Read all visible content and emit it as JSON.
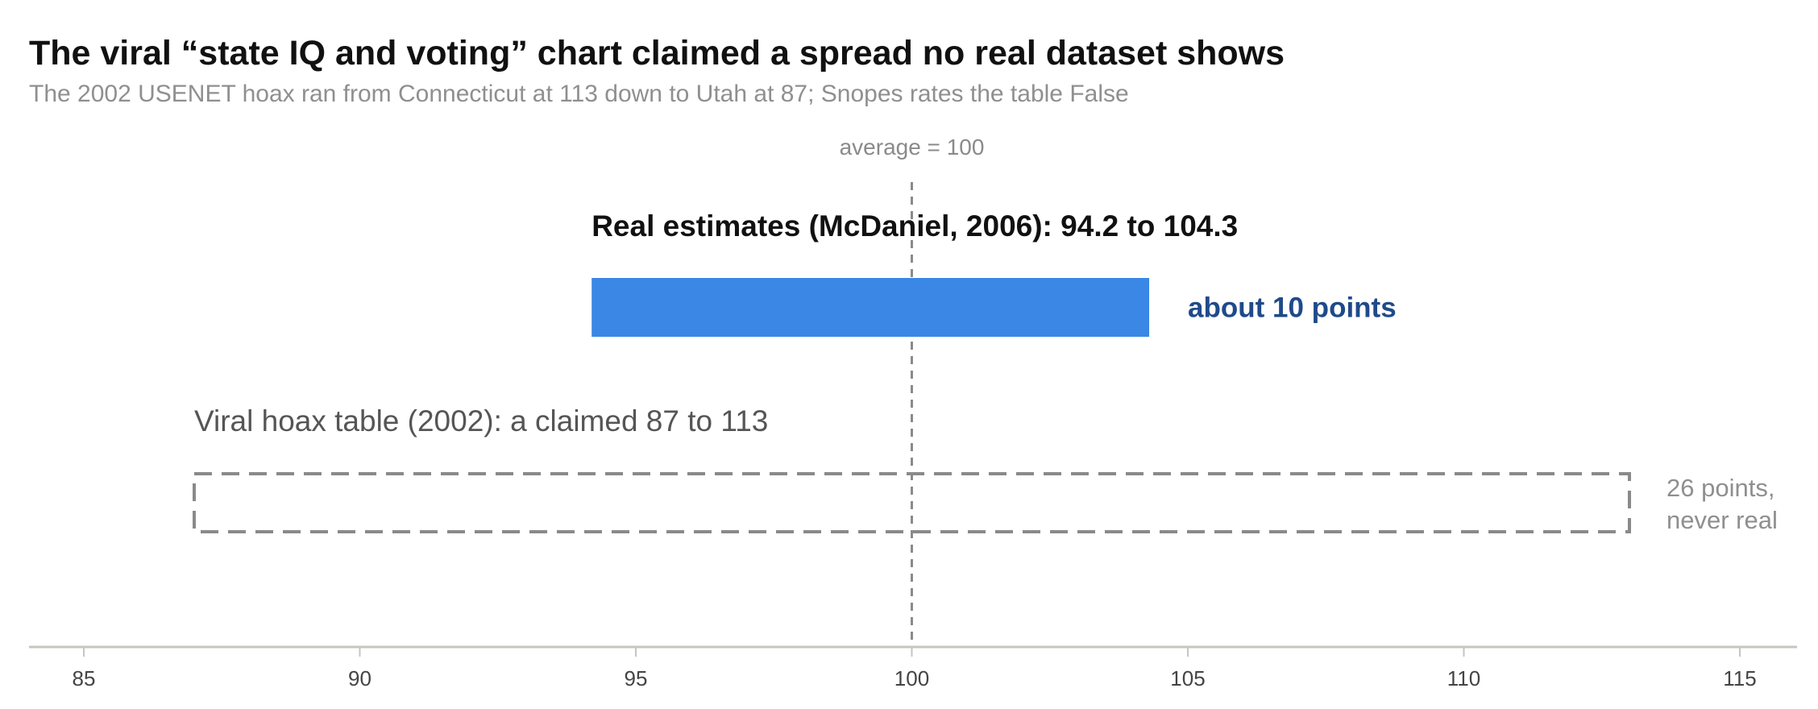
{
  "chart_data": {
    "type": "bar",
    "title": "The viral “state IQ and voting” chart claimed a spread no real dataset shows",
    "subtitle": "The 2002 USENET hoax ran from Connecticut at 113 down to Utah at 87; Snopes rates the table False",
    "xlabel": "",
    "ylabel": "",
    "xlim": [
      84,
      116
    ],
    "x_ticks": [
      85,
      90,
      95,
      100,
      105,
      110,
      115
    ],
    "grid": false,
    "legend": "none",
    "reference_line": {
      "value": 100,
      "label": "average = 100",
      "style": "dashed"
    },
    "series": [
      {
        "label": "Real estimates (McDaniel, 2006): 94.2 to 104.3",
        "low": 94.2,
        "high": 104.3,
        "note": "about 10 points",
        "style": "solid",
        "color": "#3a87e5",
        "note_color": "#1f4a8a"
      },
      {
        "label": "Viral hoax table (2002): a claimed 87 to 113",
        "low": 87,
        "high": 113,
        "note_lines": [
          "26 points,",
          "never real"
        ],
        "style": "dashed",
        "color": "#8a8a8a",
        "note_color": "#8f8f8f"
      }
    ],
    "colors": {
      "axis": "#c6c6be",
      "reference": "#8a8a8a"
    }
  }
}
